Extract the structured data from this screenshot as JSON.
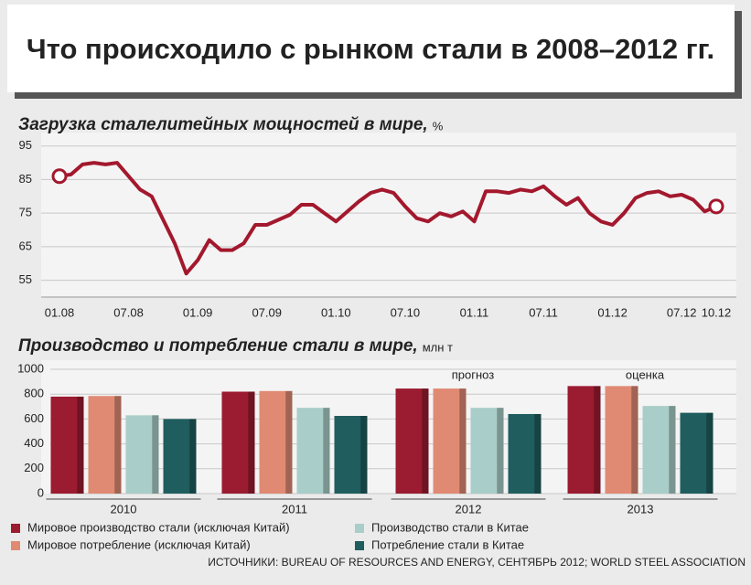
{
  "title": "Что происходило с рынком стали в 2008–2012 гг.",
  "source": "ИСТОЧНИКИ: BUREAU OF RESOURCES AND ENERGY, СЕНТЯБРЬ 2012; WORLD STEEL ASSOCIATION",
  "chart_data": [
    {
      "type": "line",
      "title": "Загрузка сталелитейных мощностей в мире,",
      "unit": "%",
      "categories": [
        "01.08",
        null,
        null,
        null,
        null,
        null,
        "07.08",
        null,
        null,
        null,
        null,
        null,
        "01.09",
        null,
        null,
        null,
        null,
        null,
        "07.09",
        null,
        null,
        null,
        null,
        null,
        "01.10",
        null,
        null,
        null,
        null,
        null,
        "07.10",
        null,
        null,
        null,
        null,
        null,
        "01.11",
        null,
        null,
        null,
        null,
        null,
        "07.11",
        null,
        null,
        null,
        null,
        null,
        "01.12",
        null,
        null,
        null,
        null,
        null,
        "07.12",
        null,
        null,
        "10.12"
      ],
      "series": [
        {
          "name": "Загрузка",
          "color": "#a3182d",
          "values": [
            86,
            86.5,
            89.5,
            90,
            89.5,
            90,
            86,
            82,
            80,
            73,
            66,
            57,
            61,
            67,
            64,
            64,
            66,
            71.5,
            71.5,
            73,
            74.5,
            77.5,
            77.5,
            75,
            72.5,
            75.5,
            78.5,
            81,
            82,
            81,
            77,
            73.5,
            72.5,
            75,
            74,
            75.5,
            72.5,
            81.5,
            81.5,
            81,
            82,
            81.5,
            83,
            80,
            77.5,
            79.5,
            75,
            72.5,
            71.5,
            75,
            79.5,
            81,
            81.5,
            80,
            80.5,
            79,
            75.5,
            77
          ]
        }
      ],
      "ylim": [
        50,
        99
      ],
      "yticks": [
        55,
        65,
        75,
        85,
        95
      ],
      "grid": true
    },
    {
      "type": "bar",
      "title": "Производство и потребление стали в мире,",
      "unit": "млн т",
      "categories": [
        "2010",
        "2011",
        "2012",
        "2013"
      ],
      "series": [
        {
          "name": "Мировое производство стали (исключая Китай)",
          "color": "#9b1b30",
          "values": [
            780,
            820,
            845,
            865
          ]
        },
        {
          "name": "Мировое потребление (исключая Китай)",
          "color": "#e08a73",
          "values": [
            785,
            825,
            845,
            865
          ]
        },
        {
          "name": "Производство стали в Китае",
          "color": "#a9cdc8",
          "values": [
            630,
            690,
            690,
            705
          ]
        },
        {
          "name": "Потребление стали в Китае",
          "color": "#1f5d5e",
          "values": [
            600,
            625,
            640,
            650
          ]
        }
      ],
      "annotations": [
        {
          "text": "прогноз",
          "x": "2012"
        },
        {
          "text": "оценка",
          "x": "2013"
        }
      ],
      "ylim": [
        0,
        1000
      ],
      "yticks": [
        0,
        200,
        400,
        600,
        800,
        1000
      ],
      "grid": true
    }
  ]
}
